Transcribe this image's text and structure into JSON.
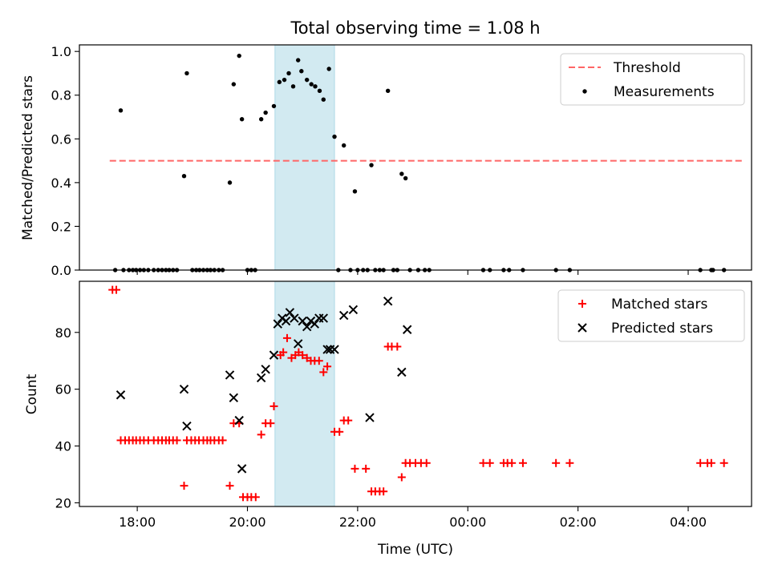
{
  "chart_data": [
    {
      "type": "scatter",
      "title": "Total observing time = 1.08 h",
      "xlabel": "",
      "ylabel": "Matched/Predicted stars",
      "x_unit": "hours (UTC, continuing past midnight)",
      "xlim": [
        16.95,
        29.15
      ],
      "ylim": [
        0,
        1.03
      ],
      "yticks": [
        0.0,
        0.2,
        0.4,
        0.6,
        0.8,
        1.0
      ],
      "ytick_labels": [
        "0.0",
        "0.2",
        "0.4",
        "0.6",
        "0.8",
        "1.0"
      ],
      "shaded_region": {
        "x_start": 20.5,
        "x_end": 21.58,
        "color": "#add8e6"
      },
      "legend_position": "top-right",
      "legend": [
        "Threshold",
        "Measurements"
      ],
      "series": [
        {
          "name": "Threshold",
          "kind": "dashed-line",
          "color": "#ff6666",
          "x": [
            17.5,
            29.0
          ],
          "y": [
            0.5,
            0.5
          ]
        },
        {
          "name": "Measurements",
          "kind": "dot",
          "color": "#000000",
          "x": [
            17.6,
            17.7,
            17.75,
            17.85,
            17.92,
            17.98,
            18.05,
            18.12,
            18.2,
            18.3,
            18.38,
            18.45,
            18.52,
            18.58,
            18.65,
            18.72,
            18.85,
            18.9,
            19.0,
            19.07,
            19.13,
            19.2,
            19.27,
            19.33,
            19.4,
            19.48,
            19.55,
            19.68,
            19.75,
            19.85,
            19.9,
            20.0,
            20.07,
            20.14,
            20.25,
            20.33,
            20.48,
            20.58,
            20.67,
            20.75,
            20.83,
            20.92,
            20.98,
            21.08,
            21.16,
            21.23,
            21.31,
            21.38,
            21.48,
            21.58,
            21.65,
            21.75,
            21.87,
            21.95,
            22.0,
            22.1,
            22.18,
            22.25,
            22.32,
            22.4,
            22.47,
            22.55,
            22.65,
            22.72,
            22.8,
            22.87,
            22.95,
            23.1,
            23.22,
            23.3,
            24.28,
            24.4,
            24.65,
            24.75,
            25.0,
            25.6,
            25.85,
            28.22,
            28.42,
            28.45,
            28.65
          ],
          "y": [
            0,
            0.73,
            0,
            0,
            0,
            0,
            0,
            0,
            0,
            0,
            0,
            0,
            0,
            0,
            0,
            0,
            0.43,
            0.9,
            0,
            0,
            0,
            0,
            0,
            0,
            0,
            0,
            0,
            0.4,
            0.85,
            0.98,
            0.69,
            0,
            0,
            0,
            0.69,
            0.72,
            0.75,
            0.86,
            0.87,
            0.9,
            0.84,
            0.96,
            0.91,
            0.87,
            0.85,
            0.84,
            0.82,
            0.78,
            0.92,
            0.61,
            0,
            0.57,
            0,
            0.36,
            0,
            0,
            0,
            0.48,
            0,
            0,
            0,
            0.82,
            0,
            0,
            0.44,
            0.42,
            0,
            0,
            0,
            0,
            0,
            0,
            0,
            0,
            0,
            0,
            0,
            0,
            0,
            0,
            0
          ]
        }
      ]
    },
    {
      "type": "scatter",
      "title": "",
      "xlabel": "Time (UTC)",
      "ylabel": "Count",
      "x_unit": "hours (UTC, continuing past midnight)",
      "xlim": [
        16.95,
        29.15
      ],
      "ylim": [
        18.7,
        98
      ],
      "yticks": [
        20,
        40,
        60,
        80
      ],
      "ytick_labels": [
        "20",
        "40",
        "60",
        "80"
      ],
      "xticks": [
        18,
        20,
        22,
        24,
        26,
        28
      ],
      "xtick_labels": [
        "18:00",
        "20:00",
        "22:00",
        "00:00",
        "02:00",
        "04:00"
      ],
      "shaded_region": {
        "x_start": 20.5,
        "x_end": 21.58,
        "color": "#add8e6"
      },
      "legend_position": "top-right",
      "legend": [
        "Matched stars",
        "Predicted stars"
      ],
      "series": [
        {
          "name": "Matched stars",
          "kind": "plus",
          "color": "#ff0000",
          "x": [
            17.55,
            17.62,
            17.7,
            17.78,
            17.85,
            17.92,
            17.98,
            18.05,
            18.12,
            18.2,
            18.3,
            18.38,
            18.45,
            18.52,
            18.58,
            18.65,
            18.72,
            18.85,
            18.9,
            18.98,
            19.05,
            19.12,
            19.2,
            19.27,
            19.33,
            19.4,
            19.48,
            19.55,
            19.68,
            19.75,
            19.85,
            19.92,
            20.0,
            20.07,
            20.15,
            20.25,
            20.33,
            20.42,
            20.48,
            20.6,
            20.65,
            20.72,
            20.8,
            20.87,
            20.93,
            21.0,
            21.08,
            21.15,
            21.22,
            21.3,
            21.38,
            21.45,
            21.58,
            21.67,
            21.75,
            21.83,
            21.95,
            22.15,
            22.25,
            22.32,
            22.4,
            22.47,
            22.55,
            22.62,
            22.72,
            22.8,
            22.87,
            22.95,
            23.05,
            23.15,
            23.25,
            24.28,
            24.4,
            24.65,
            24.72,
            24.8,
            25.0,
            25.6,
            25.85,
            28.22,
            28.35,
            28.42,
            28.65
          ],
          "y": [
            95,
            95,
            42,
            42,
            42,
            42,
            42,
            42,
            42,
            42,
            42,
            42,
            42,
            42,
            42,
            42,
            42,
            26,
            42,
            42,
            42,
            42,
            42,
            42,
            42,
            42,
            42,
            42,
            26,
            48,
            48,
            22,
            22,
            22,
            22,
            44,
            48,
            48,
            54,
            72,
            73,
            78,
            71,
            72,
            73,
            72,
            71,
            70,
            70,
            70,
            66,
            68,
            45,
            45,
            49,
            49,
            32,
            32,
            24,
            24,
            24,
            24,
            75,
            75,
            75,
            29,
            34,
            34,
            34,
            34,
            34,
            34,
            34,
            34,
            34,
            34,
            34,
            34,
            34,
            34,
            34,
            34,
            34
          ]
        },
        {
          "name": "Predicted stars",
          "kind": "x",
          "color": "#000000",
          "x": [
            17.7,
            18.85,
            18.9,
            19.68,
            19.75,
            19.85,
            19.9,
            20.25,
            20.33,
            20.48,
            20.55,
            20.63,
            20.7,
            20.77,
            20.85,
            20.92,
            21.0,
            21.08,
            21.15,
            21.22,
            21.3,
            21.38,
            21.45,
            21.5,
            21.58,
            21.75,
            21.92,
            22.22,
            22.55,
            22.8,
            22.9
          ],
          "y": [
            58,
            60,
            47,
            65,
            57,
            49,
            32,
            64,
            67,
            72,
            83,
            85,
            84,
            87,
            85,
            76,
            84,
            82,
            84,
            83,
            85,
            85,
            74,
            74,
            74,
            86,
            88,
            50,
            91,
            66,
            81
          ]
        }
      ]
    }
  ]
}
